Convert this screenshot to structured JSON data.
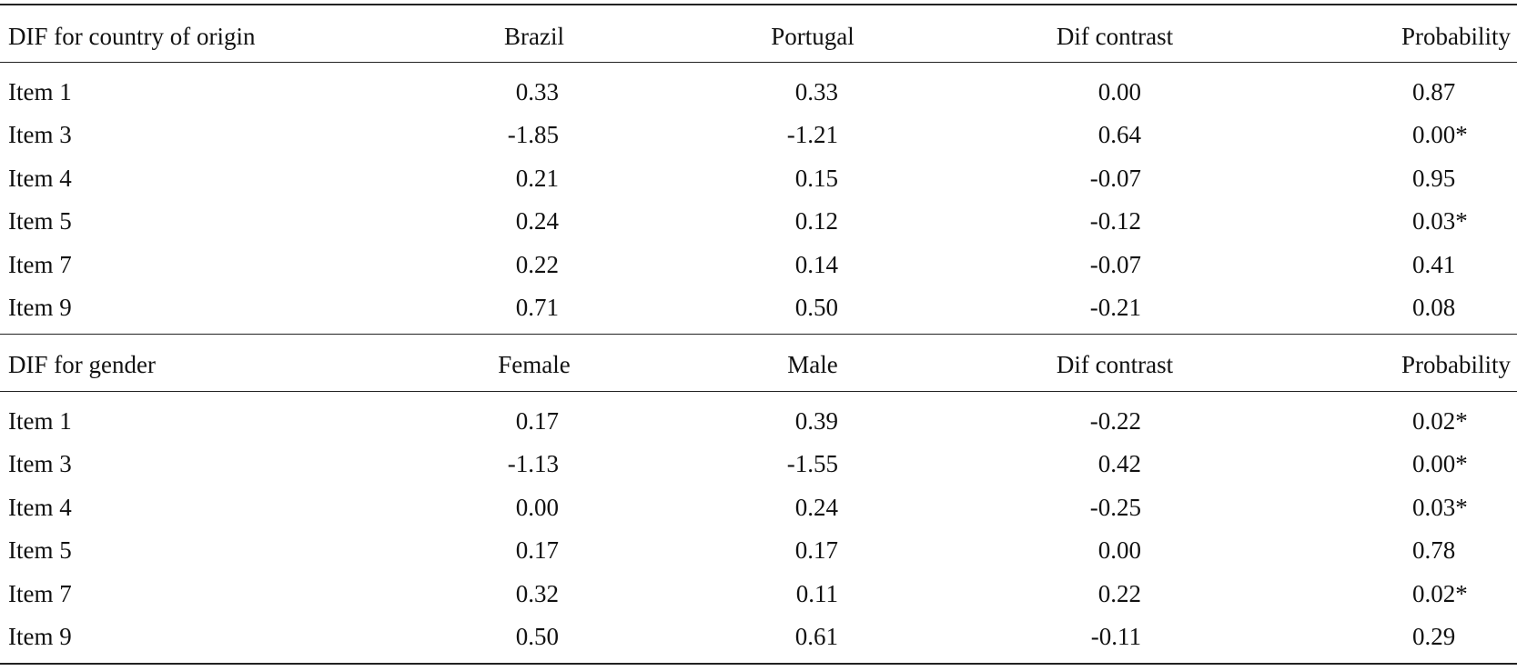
{
  "sections": [
    {
      "header": [
        "DIF for country of origin",
        "Brazil",
        "Portugal",
        "Dif contrast",
        "Probability"
      ],
      "rows": [
        [
          "Item 1",
          "0.33",
          "0.33",
          "0.00",
          "0.87"
        ],
        [
          "Item 3",
          "-1.85",
          "-1.21",
          "0.64",
          "0.00*"
        ],
        [
          "Item 4",
          "0.21",
          "0.15",
          "-0.07",
          "0.95"
        ],
        [
          "Item 5",
          "0.24",
          "0.12",
          "-0.12",
          "0.03*"
        ],
        [
          "Item 7",
          "0.22",
          "0.14",
          "-0.07",
          "0.41"
        ],
        [
          "Item 9",
          "0.71",
          "0.50",
          "-0.21",
          "0.08"
        ]
      ]
    },
    {
      "header": [
        "DIF for gender",
        "Female",
        "Male",
        "Dif contrast",
        "Probability"
      ],
      "rows": [
        [
          "Item 1",
          "0.17",
          "0.39",
          "-0.22",
          "0.02*"
        ],
        [
          "Item 3",
          "-1.13",
          "-1.55",
          "0.42",
          "0.00*"
        ],
        [
          "Item 4",
          "0.00",
          "0.24",
          "-0.25",
          "0.03*"
        ],
        [
          "Item 5",
          "0.17",
          "0.17",
          "0.00",
          "0.78"
        ],
        [
          "Item 7",
          "0.32",
          "0.11",
          "0.22",
          "0.02*"
        ],
        [
          "Item 9",
          "0.50",
          "0.61",
          "-0.11",
          "0.29"
        ]
      ]
    }
  ]
}
